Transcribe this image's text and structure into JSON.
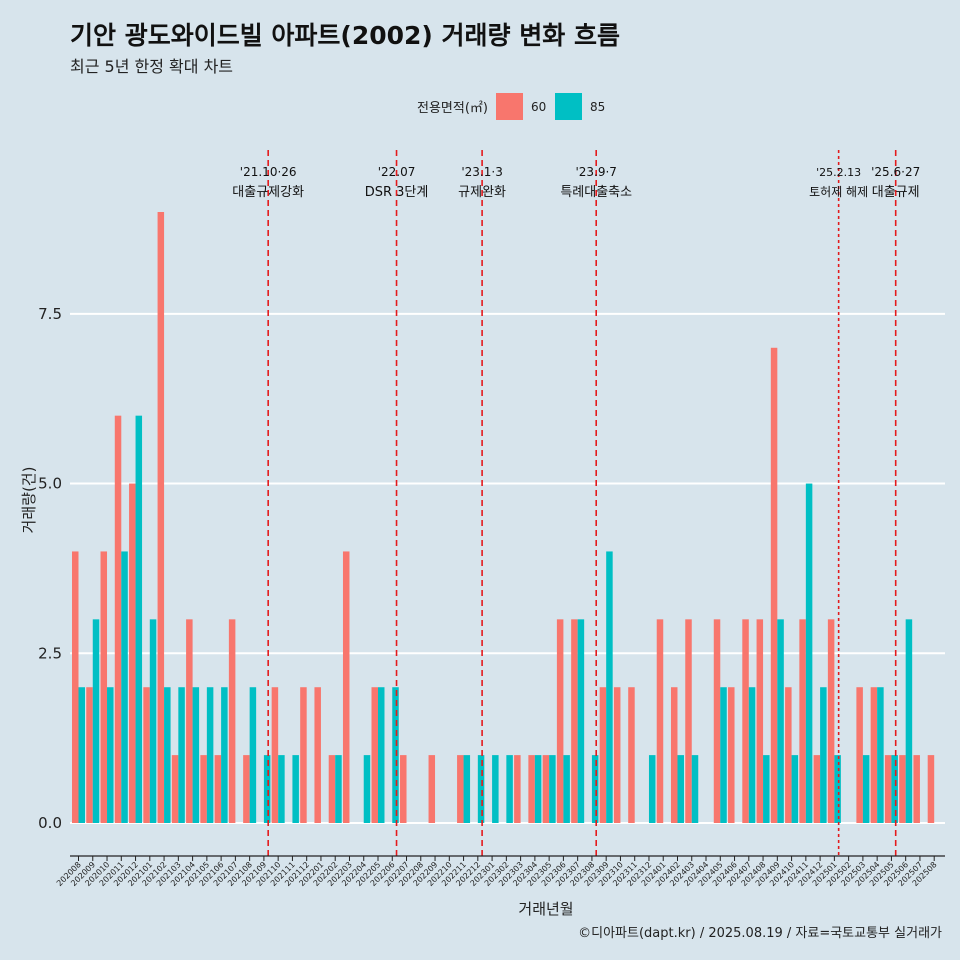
{
  "header": {
    "title": "기안 광도와이드빌 아파트(2002) 거래량 변화 흐름",
    "subtitle": "최근 5년 한정 확대 차트"
  },
  "caption": "©디아파트(dapt.kr) / 2025.08.19 / 자료=국토교통부 실거래가",
  "colors": {
    "s60": "#f8766d",
    "s85": "#00bfc4",
    "vline": "#e31a1c",
    "grid": "#ffffff",
    "background": "#d7e4ec"
  },
  "chart_data": {
    "type": "bar",
    "title": "기안 광도와이드빌 아파트(2002) 거래량 변화 흐름",
    "subtitle": "최근 5년 한정 확대 차트",
    "xlabel": "거래년월",
    "ylabel": "거래량(건)",
    "ylim": [
      0,
      9
    ],
    "yticks": [
      0,
      2.5,
      5,
      7.5
    ],
    "ytick_labels": [
      "0.0",
      "2.5",
      "5.0",
      "7.5"
    ],
    "legend": {
      "title": "전용면적(㎡)",
      "position": "top",
      "entries": [
        "60",
        "85"
      ]
    },
    "categories": [
      "202008",
      "202009",
      "202010",
      "202011",
      "202012",
      "202101",
      "202102",
      "202103",
      "202104",
      "202105",
      "202106",
      "202107",
      "202108",
      "202109",
      "202110",
      "202111",
      "202112",
      "202201",
      "202202",
      "202203",
      "202204",
      "202205",
      "202206",
      "202207",
      "202208",
      "202209",
      "202210",
      "202211",
      "202212",
      "202301",
      "202302",
      "202303",
      "202304",
      "202305",
      "202306",
      "202307",
      "202308",
      "202309",
      "202310",
      "202311",
      "202312",
      "202401",
      "202402",
      "202403",
      "202404",
      "202405",
      "202406",
      "202407",
      "202408",
      "202409",
      "202410",
      "202411",
      "202412",
      "202501",
      "202502",
      "202503",
      "202504",
      "202505",
      "202506",
      "202507",
      "202508"
    ],
    "series": [
      {
        "name": "60",
        "values": [
          4,
          2,
          4,
          6,
          5,
          2,
          9,
          1,
          3,
          1,
          1,
          3,
          1,
          0,
          2,
          0,
          2,
          2,
          1,
          4,
          0,
          2,
          0,
          1,
          0,
          1,
          0,
          1,
          0,
          0,
          0,
          1,
          1,
          1,
          3,
          3,
          0,
          2,
          2,
          2,
          0,
          3,
          2,
          3,
          0,
          3,
          2,
          3,
          3,
          7,
          2,
          3,
          1,
          3,
          0,
          2,
          2,
          1,
          1,
          1,
          1
        ]
      },
      {
        "name": "85",
        "values": [
          2,
          3,
          2,
          4,
          6,
          3,
          2,
          2,
          2,
          2,
          2,
          0,
          2,
          1,
          1,
          1,
          0,
          0,
          1,
          0,
          1,
          2,
          2,
          0,
          0,
          0,
          0,
          1,
          1,
          1,
          1,
          0,
          1,
          1,
          1,
          3,
          1,
          4,
          0,
          0,
          1,
          0,
          1,
          1,
          0,
          2,
          0,
          2,
          1,
          3,
          1,
          5,
          2,
          1,
          0,
          1,
          2,
          1,
          3,
          0,
          0
        ]
      }
    ],
    "annotations": [
      {
        "date": "'21.10·26",
        "label": "대출규제강화",
        "at": "202110",
        "style": "dashed"
      },
      {
        "date": "'22.07",
        "label": "DSR 3단계",
        "at": "202207",
        "style": "dashed"
      },
      {
        "date": "'23.1·3",
        "label": "규제완화",
        "at": "202301",
        "style": "dashed"
      },
      {
        "date": "'23.9·7",
        "label": "특례대출축소",
        "at": "202309",
        "style": "dashed"
      },
      {
        "date": "'25.2.13",
        "label": "토허제 해제",
        "at": "202502",
        "style": "dotted"
      },
      {
        "date": "'25.6·27",
        "label": "대출규제",
        "at": "202506",
        "style": "dashed"
      }
    ]
  }
}
